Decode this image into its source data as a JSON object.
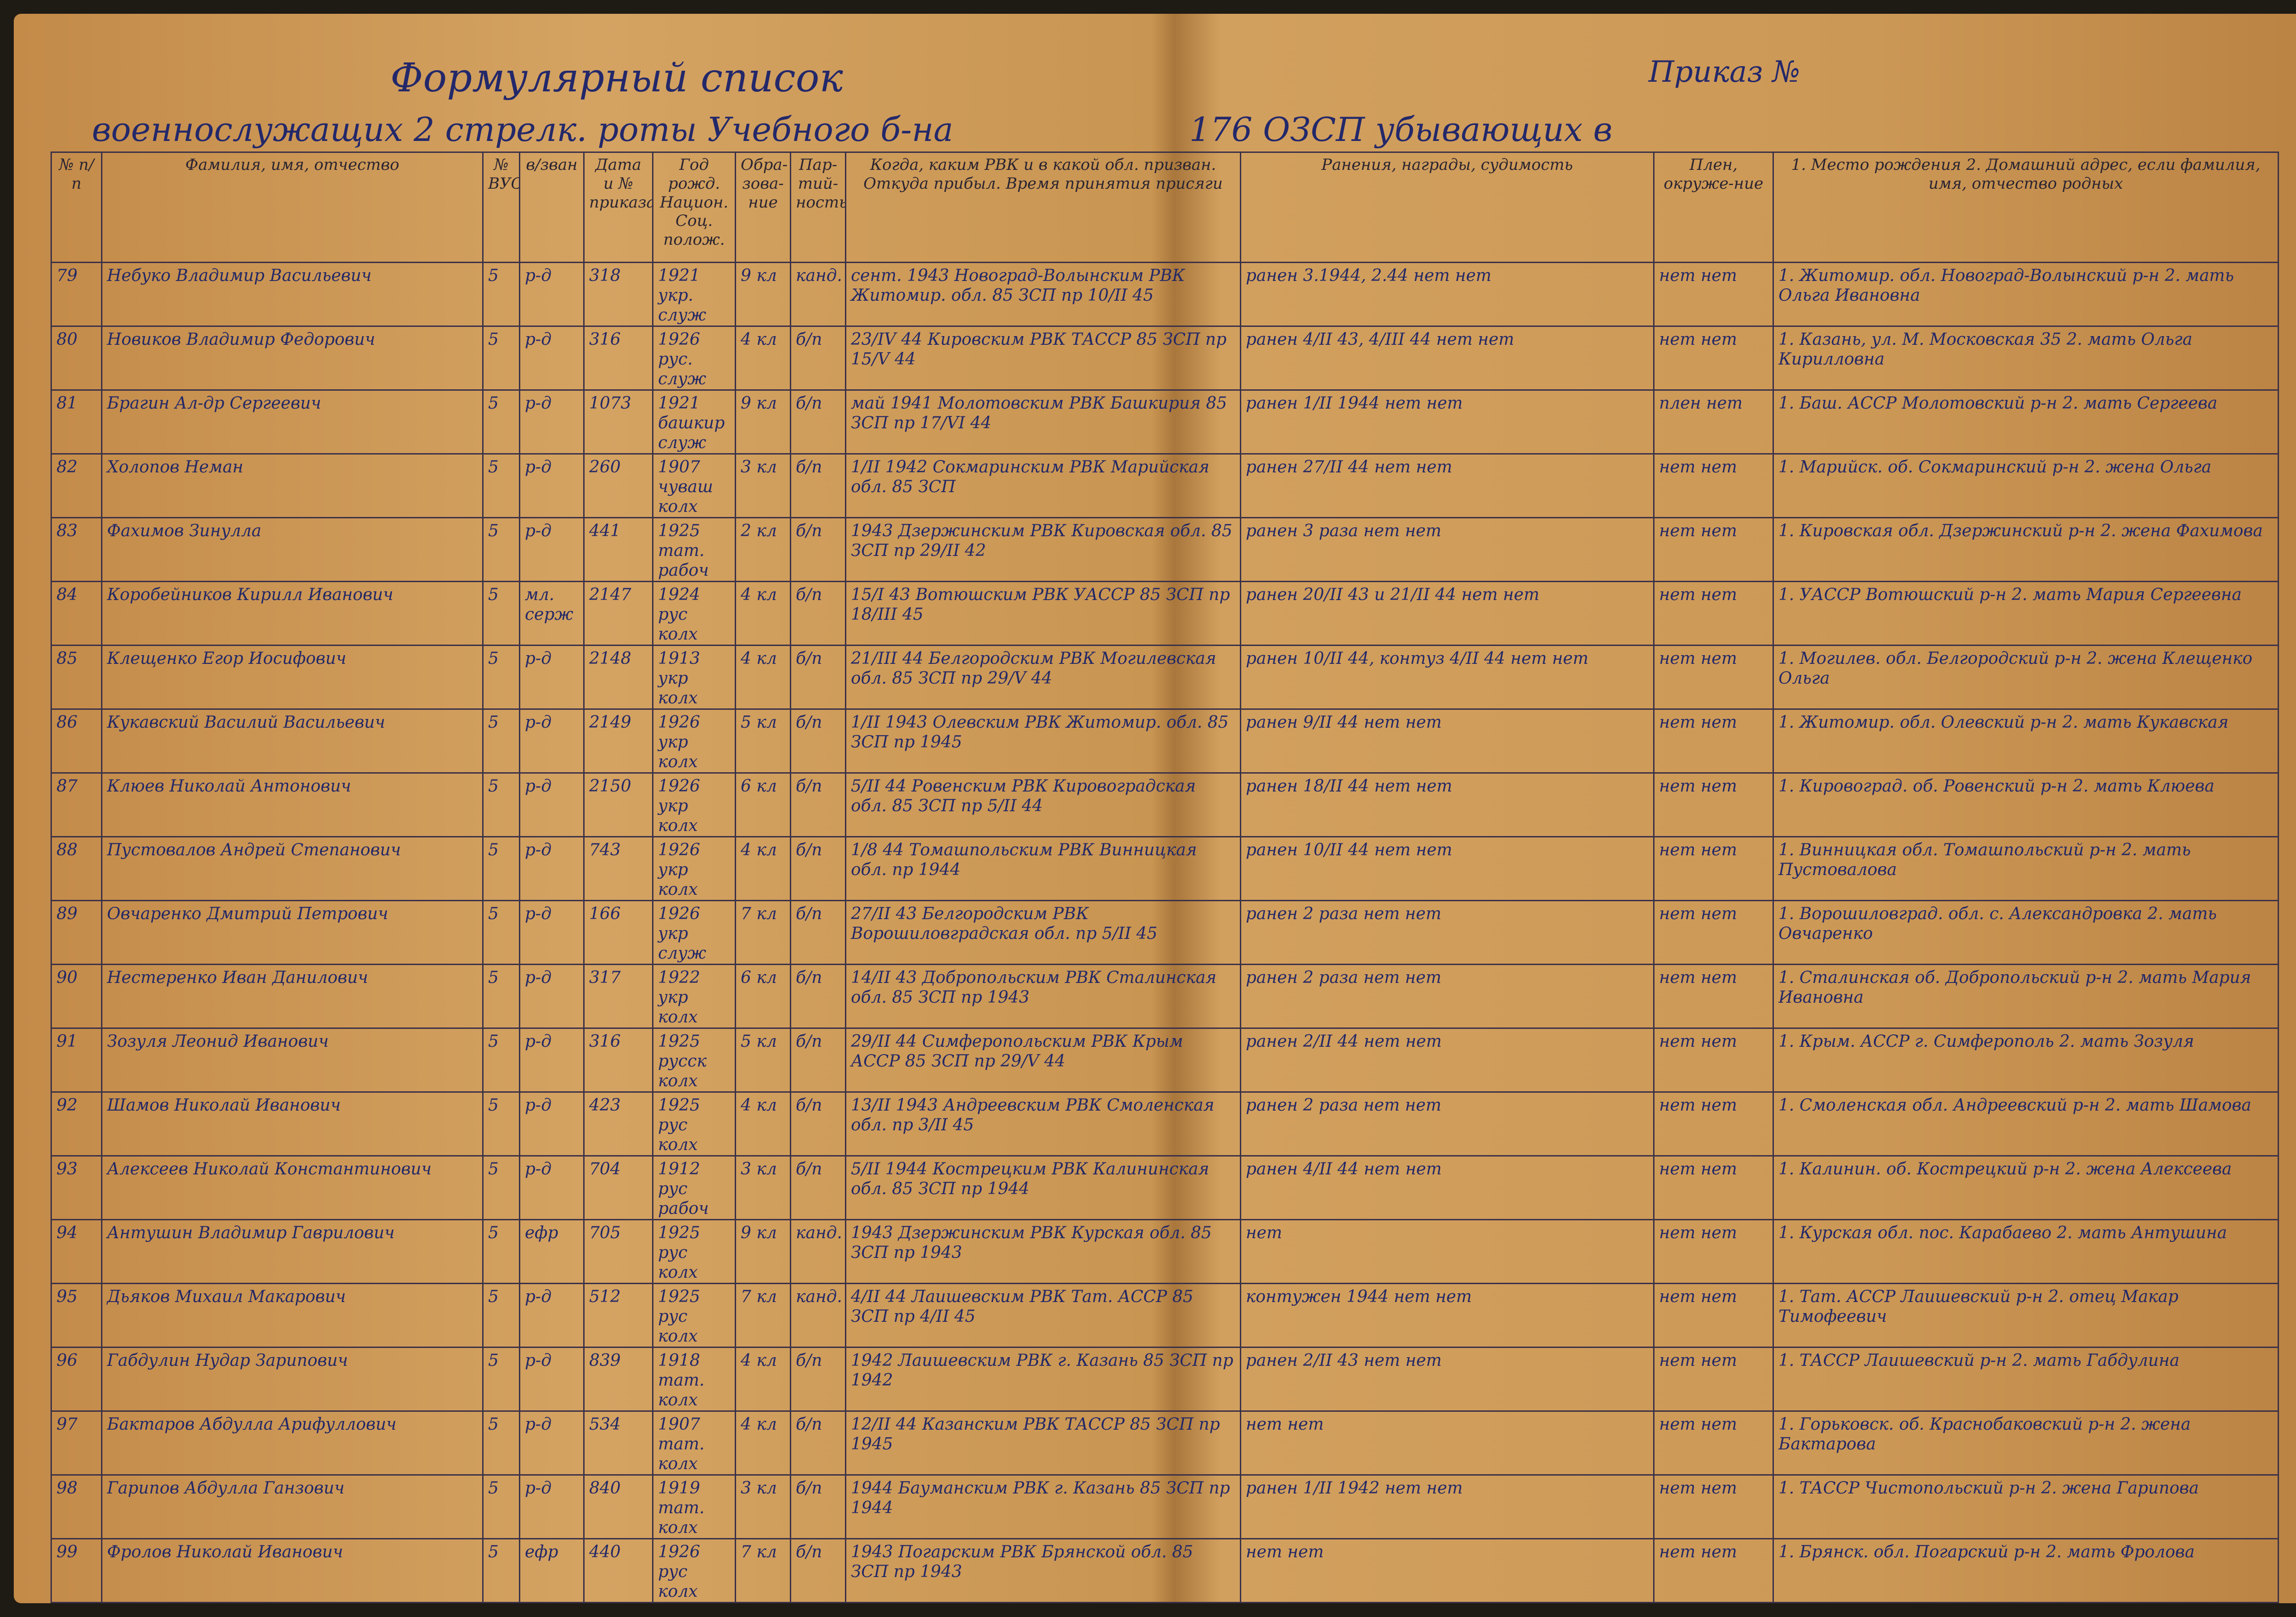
{
  "header": {
    "title": "Формулярный список",
    "order": "Приказ №",
    "subtitle_left": "военнослужащих 2 стрелк. роты Учебного б-на",
    "subtitle_right": "176 ОЗСП убывающих в"
  },
  "table": {
    "columns": [
      "№ п/п",
      "Фамилия, имя, отчество",
      "№ ВУС",
      "в/зван",
      "Дата и № приказа",
      "Год рожд. Национ. Соц. полож.",
      "Обра-зова-ние",
      "Пар-тий-ность",
      "Когда, каким РВК и в какой обл. призван. Откуда прибыл. Время принятия присяги",
      "Ранения, награды, судимость",
      "Плен, окруже-ние",
      "1. Место рождения 2. Домашний адрес, если фамилия, имя, отчество родных"
    ],
    "rows": [
      [
        "79",
        "Небуко Владимир Васильевич",
        "5",
        "р-д",
        "318",
        "1921 укр. служ",
        "9 кл",
        "канд.",
        "сент. 1943 Новоград-Волынским РВК Житомир. обл. 85 ЗСП пр 10/II 45",
        "ранен 3.1944, 2.44 нет нет",
        "нет нет",
        "1. Житомир. обл. Новоград-Волынский р-н 2. мать Ольга Ивановна"
      ],
      [
        "80",
        "Новиков Владимир Федорович",
        "5",
        "р-д",
        "316",
        "1926 рус. служ",
        "4 кл",
        "б/п",
        "23/IV 44 Кировским РВК ТАССР 85 ЗСП пр 15/V 44",
        "ранен 4/II 43, 4/III 44 нет нет",
        "нет нет",
        "1. Казань, ул. М. Московская 35 2. мать Ольга Кирилловна"
      ],
      [
        "81",
        "Брагин Ал-др Сергеевич",
        "5",
        "р-д",
        "1073",
        "1921 башкир служ",
        "9 кл",
        "б/п",
        "май 1941 Молотовским РВК Башкирия 85 ЗСП пр 17/VI 44",
        "ранен 1/II 1944 нет нет",
        "плен нет",
        "1. Баш. АССР Молотовский р-н 2. мать Сергеева"
      ],
      [
        "82",
        "Холопов Неман",
        "5",
        "р-д",
        "260",
        "1907 чуваш колх",
        "3 кл",
        "б/п",
        "1/II 1942 Сокмаринским РВК Марийская обл. 85 ЗСП",
        "ранен 27/II 44 нет нет",
        "нет нет",
        "1. Марийск. об. Сокмаринский р-н 2. жена Ольга"
      ],
      [
        "83",
        "Фахимов Зинулла",
        "5",
        "р-д",
        "441",
        "1925 тат. рабоч",
        "2 кл",
        "б/п",
        "1943 Дзержинским РВК Кировская обл. 85 ЗСП пр 29/II 42",
        "ранен 3 раза нет нет",
        "нет нет",
        "1. Кировская обл. Дзержинский р-н 2. жена Фахимова"
      ],
      [
        "84",
        "Коробейников Кирилл Иванович",
        "5",
        "мл. серж",
        "2147",
        "1924 рус колх",
        "4 кл",
        "б/п",
        "15/I 43 Вотюшским РВК УАССР 85 ЗСП пр 18/III 45",
        "ранен 20/II 43 и 21/II 44 нет нет",
        "нет нет",
        "1. УАССР Вотюшский р-н 2. мать Мария Сергеевна"
      ],
      [
        "85",
        "Клещенко Егор Иосифович",
        "5",
        "р-д",
        "2148",
        "1913 укр колх",
        "4 кл",
        "б/п",
        "21/III 44 Белгородским РВК Могилевская обл. 85 ЗСП пр 29/V 44",
        "ранен 10/II 44, контуз 4/II 44 нет нет",
        "нет нет",
        "1. Могилев. обл. Белгородский р-н 2. жена Клещенко Ольга"
      ],
      [
        "86",
        "Кукавский Василий Васильевич",
        "5",
        "р-д",
        "2149",
        "1926 укр колх",
        "5 кл",
        "б/п",
        "1/II 1943 Олевским РВК Житомир. обл. 85 ЗСП пр 1945",
        "ранен 9/II 44 нет нет",
        "нет нет",
        "1. Житомир. обл. Олевский р-н 2. мать Кукавская"
      ],
      [
        "87",
        "Клюев Николай Антонович",
        "5",
        "р-д",
        "2150",
        "1926 укр колх",
        "6 кл",
        "б/п",
        "5/II 44 Ровенским РВК Кировоградская обл. 85 ЗСП пр 5/II 44",
        "ранен 18/II 44 нет нет",
        "нет нет",
        "1. Кировоград. об. Ровенский р-н 2. мать Клюева"
      ],
      [
        "88",
        "Пустовалов Андрей Степанович",
        "5",
        "р-д",
        "743",
        "1926 укр колх",
        "4 кл",
        "б/п",
        "1/8 44 Томашпольским РВК Винницкая обл. пр 1944",
        "ранен 10/II 44 нет нет",
        "нет нет",
        "1. Винницкая обл. Томашпольский р-н 2. мать Пустовалова"
      ],
      [
        "89",
        "Овчаренко Дмитрий Петрович",
        "5",
        "р-д",
        "166",
        "1926 укр служ",
        "7 кл",
        "б/п",
        "27/II 43 Белгородским РВК Ворошиловградская обл. пр 5/II 45",
        "ранен 2 раза нет нет",
        "нет нет",
        "1. Ворошиловград. обл. с. Александровка 2. мать Овчаренко"
      ],
      [
        "90",
        "Нестеренко Иван Данилович",
        "5",
        "р-д",
        "317",
        "1922 укр колх",
        "6 кл",
        "б/п",
        "14/II 43 Добропольским РВК Сталинская обл. 85 ЗСП пр 1943",
        "ранен 2 раза нет нет",
        "нет нет",
        "1. Сталинская об. Добропольский р-н 2. мать Мария Ивановна"
      ],
      [
        "91",
        "Зозуля Леонид Иванович",
        "5",
        "р-д",
        "316",
        "1925 русск колх",
        "5 кл",
        "б/п",
        "29/II 44 Симферопольским РВК Крым АССР 85 ЗСП пр 29/V 44",
        "ранен 2/II 44 нет нет",
        "нет нет",
        "1. Крым. АССР г. Симферополь 2. мать Зозуля"
      ],
      [
        "92",
        "Шамов Николай Иванович",
        "5",
        "р-д",
        "423",
        "1925 рус колх",
        "4 кл",
        "б/п",
        "13/II 1943 Андреевским РВК Смоленская обл. пр 3/II 45",
        "ранен 2 раза нет нет",
        "нет нет",
        "1. Смоленская обл. Андреевский р-н 2. мать Шамова"
      ],
      [
        "93",
        "Алексеев Николай Константинович",
        "5",
        "р-д",
        "704",
        "1912 рус рабоч",
        "3 кл",
        "б/п",
        "5/II 1944 Кострецким РВК Калининская обл. 85 ЗСП пр 1944",
        "ранен 4/II 44 нет нет",
        "нет нет",
        "1. Калинин. об. Кострецкий р-н 2. жена Алексеева"
      ],
      [
        "94",
        "Антушин Владимир Гаврилович",
        "5",
        "ефр",
        "705",
        "1925 рус колх",
        "9 кл",
        "канд.",
        "1943 Дзержинским РВК Курская обл. 85 ЗСП пр 1943",
        "нет",
        "нет нет",
        "1. Курская обл. пос. Карабаево 2. мать Антушина"
      ],
      [
        "95",
        "Дьяков Михаил Макарович",
        "5",
        "р-д",
        "512",
        "1925 рус колх",
        "7 кл",
        "канд.",
        "4/II 44 Лаишевским РВК Тат. АССР 85 ЗСП пр 4/II 45",
        "контужен 1944 нет нет",
        "нет нет",
        "1. Тат. АССР Лаишевский р-н 2. отец Макар Тимофеевич"
      ],
      [
        "96",
        "Габдулин Нудар Зарипович",
        "5",
        "р-д",
        "839",
        "1918 тат. колх",
        "4 кл",
        "б/п",
        "1942 Лаишевским РВК г. Казань 85 ЗСП пр 1942",
        "ранен 2/II 43 нет нет",
        "нет нет",
        "1. ТАССР Лаишевский р-н 2. мать Габдулина"
      ],
      [
        "97",
        "Бактаров Абдулла Арифуллович",
        "5",
        "р-д",
        "534",
        "1907 тат. колх",
        "4 кл",
        "б/п",
        "12/II 44 Казанским РВК ТАССР 85 ЗСП пр 1945",
        "нет нет",
        "нет нет",
        "1. Горьковск. об. Краснобаковский р-н 2. жена Бактарова"
      ],
      [
        "98",
        "Гарипов Абдулла Ганзович",
        "5",
        "р-д",
        "840",
        "1919 тат. колх",
        "3 кл",
        "б/п",
        "1944 Бауманским РВК г. Казань 85 ЗСП пр 1944",
        "ранен 1/II 1942 нет нет",
        "нет нет",
        "1. ТАССР Чистопольский р-н 2. жена Гарипова"
      ],
      [
        "99",
        "Фролов Николай Иванович",
        "5",
        "ефр",
        "440",
        "1926 рус колх",
        "7 кл",
        "б/п",
        "1943 Погарским РВК Брянской обл. 85 ЗСП пр 1943",
        "нет нет",
        "нет нет",
        "1. Брянск. обл. Погарский р-н 2. мать Фролова"
      ]
    ]
  }
}
